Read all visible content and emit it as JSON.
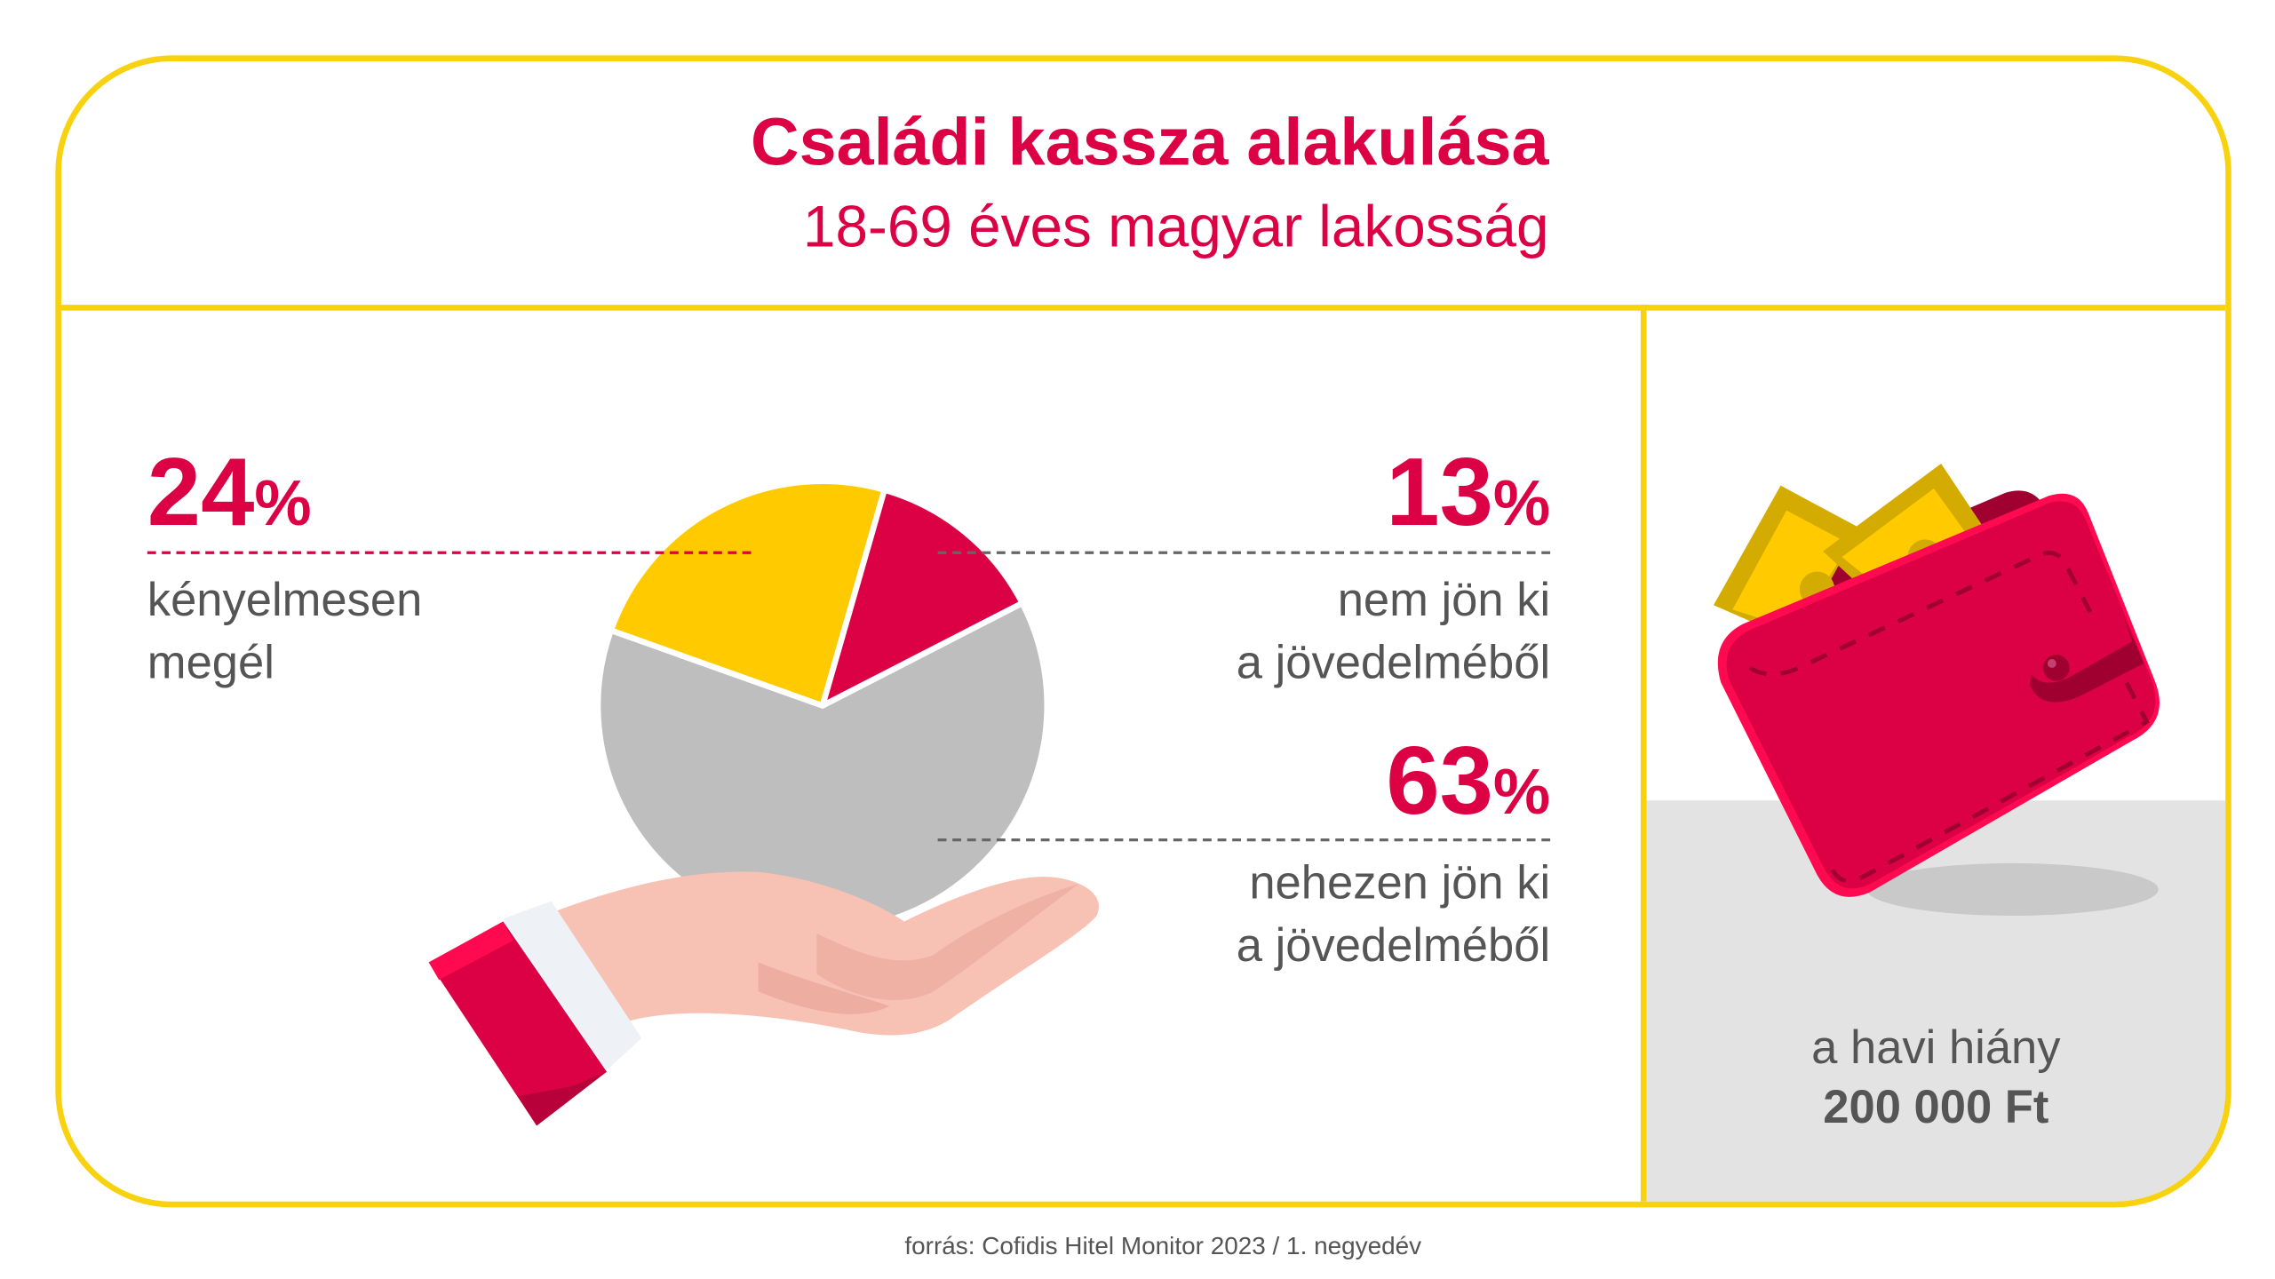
{
  "header": {
    "title": "Családi kassza alakulása",
    "subtitle": "18-69 éves magyar lakosság"
  },
  "segments": [
    {
      "value": "24",
      "unit": "%",
      "label_line1": "kényelmesen",
      "label_line2": "megél"
    },
    {
      "value": "13",
      "unit": "%",
      "label_line1": "nem jön ki",
      "label_line2": "a jövedelméből"
    },
    {
      "value": "63",
      "unit": "%",
      "label_line1": "nehezen jön ki",
      "label_line2": "a jövedelméből"
    }
  ],
  "side_panel": {
    "label": "a havi hiány",
    "amount": "200 000 Ft"
  },
  "footer": {
    "source": "forrás: Cofidis Hitel Monitor 2023 / 1. negyedév"
  },
  "colors": {
    "accent_red": "#DC0045",
    "accent_yellow": "#FFCB00",
    "neutral_gray": "#BEBEBE",
    "frame_yellow": "#F8D10F"
  },
  "chart_data": {
    "type": "pie",
    "categories": [
      "kényelmesen megél",
      "nem jön ki a jövedelméből",
      "nehezen jön ki a jövedelméből"
    ],
    "values": [
      24,
      13,
      63
    ],
    "colors": [
      "#FFCB00",
      "#DC0045",
      "#BEBEBE"
    ],
    "unit": "%"
  }
}
